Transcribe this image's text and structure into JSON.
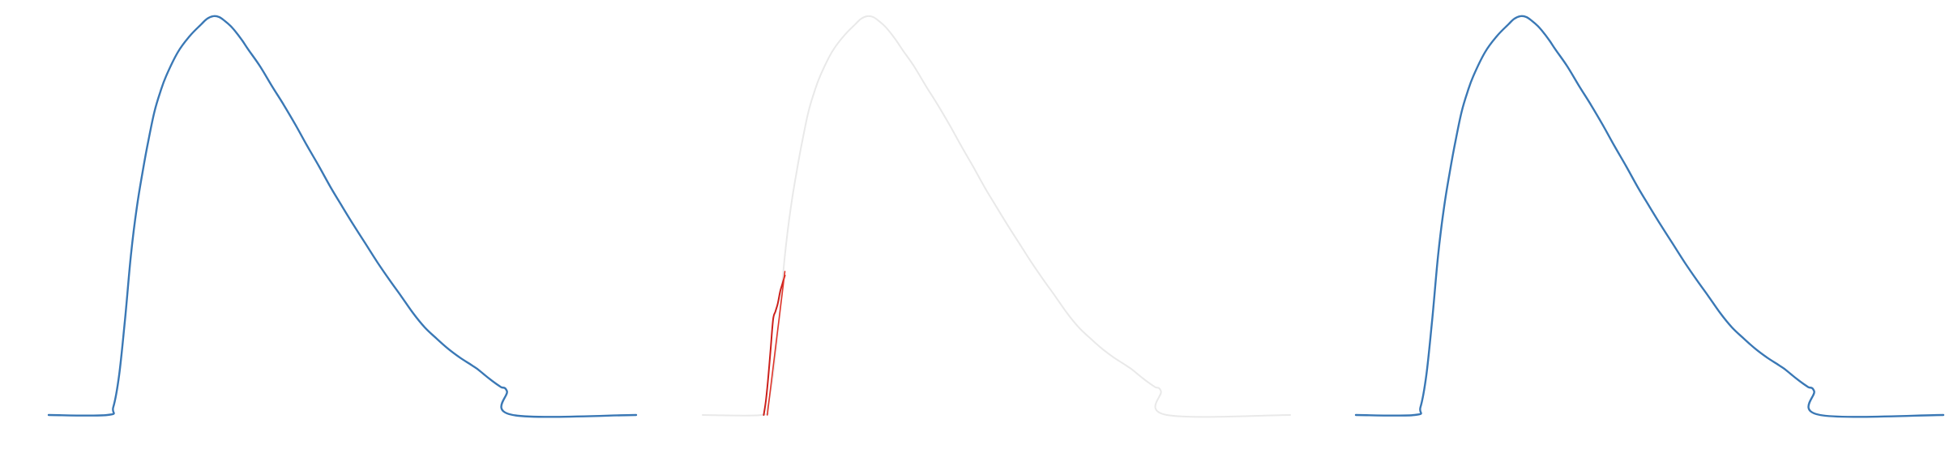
{
  "chart_data": [
    {
      "type": "line",
      "title": "",
      "xlabel": "",
      "ylabel": "",
      "axes_visible": false,
      "grid": false,
      "legend": "none",
      "xlim": [
        0,
        100
      ],
      "ylim": [
        0,
        100
      ],
      "series": [
        {
          "color": "#3a78b5",
          "x": [
            0,
            10,
            11,
            12,
            13,
            14,
            15,
            16,
            17,
            18,
            19,
            20,
            22,
            24,
            26,
            27,
            28,
            29,
            30,
            31,
            32,
            33,
            34,
            36,
            38,
            40,
            42,
            44,
            46,
            48,
            50,
            52,
            54,
            56,
            58,
            60,
            62,
            64,
            66,
            68,
            70,
            72,
            73,
            74,
            75,
            76,
            77,
            78,
            79,
            100
          ],
          "y": [
            0,
            0,
            2,
            10,
            24,
            40,
            52,
            61,
            69,
            76,
            81,
            85,
            91,
            95,
            98,
            99.4,
            100,
            99.8,
            98.8,
            97.5,
            95.8,
            93.8,
            91.6,
            87.4,
            82.5,
            77.8,
            72.8,
            67.5,
            62.4,
            57.1,
            52.2,
            47.4,
            42.8,
            38.2,
            33.9,
            29.8,
            25.6,
            22,
            19.2,
            16.6,
            14.4,
            12.5,
            11.5,
            10.3,
            9.1,
            8,
            7,
            6,
            0,
            0
          ]
        }
      ]
    },
    {
      "type": "line",
      "title": "",
      "xlabel": "",
      "ylabel": "",
      "axes_visible": false,
      "grid": false,
      "legend": "none",
      "xlim": [
        0,
        100
      ],
      "ylim": [
        0,
        100
      ],
      "series": [
        {
          "color": "#e9e9e9",
          "x": [
            0,
            10,
            11,
            12,
            13,
            14,
            15,
            16,
            17,
            18,
            19,
            20,
            22,
            24,
            26,
            27,
            28,
            29,
            30,
            31,
            32,
            33,
            34,
            36,
            38,
            40,
            42,
            44,
            46,
            48,
            50,
            52,
            54,
            56,
            58,
            60,
            62,
            64,
            66,
            68,
            70,
            72,
            73,
            74,
            75,
            76,
            77,
            78,
            79,
            100
          ],
          "y": [
            0,
            0,
            2,
            10,
            24,
            40,
            52,
            61,
            69,
            76,
            81,
            85,
            91,
            95,
            98,
            99.4,
            100,
            99.8,
            98.8,
            97.5,
            95.8,
            93.8,
            91.6,
            87.4,
            82.5,
            77.8,
            72.8,
            67.5,
            62.4,
            57.1,
            52.2,
            47.4,
            42.8,
            38.2,
            33.9,
            29.8,
            25.6,
            22,
            19.2,
            16.6,
            14.4,
            12.5,
            11.5,
            10.3,
            9.1,
            8,
            7,
            6,
            0,
            0
          ]
        },
        {
          "color": "#cc1f1a",
          "x": [
            10.4,
            10.8,
            11.2,
            11.6,
            12,
            12.4,
            12.8,
            13.2,
            13.6,
            14
          ],
          "y": [
            0,
            4,
            10,
            17,
            24,
            26,
            28,
            31,
            33,
            35
          ]
        },
        {
          "color": "#e0352b",
          "x": [
            11,
            11.5,
            12,
            12.5,
            13,
            13.5,
            14
          ],
          "y": [
            0,
            6,
            12,
            18,
            24,
            30,
            36
          ]
        }
      ]
    },
    {
      "type": "line",
      "title": "",
      "xlabel": "",
      "ylabel": "",
      "axes_visible": false,
      "grid": false,
      "legend": "none",
      "xlim": [
        0,
        100
      ],
      "ylim": [
        0,
        100
      ],
      "series": [
        {
          "color": "#3a78b5",
          "x": [
            0,
            10,
            11,
            12,
            13,
            14,
            15,
            16,
            17,
            18,
            19,
            20,
            22,
            24,
            26,
            27,
            28,
            29,
            30,
            31,
            32,
            33,
            34,
            36,
            38,
            40,
            42,
            44,
            46,
            48,
            50,
            52,
            54,
            56,
            58,
            60,
            62,
            64,
            66,
            68,
            70,
            72,
            73,
            74,
            75,
            76,
            77,
            78,
            79,
            100
          ],
          "y": [
            0,
            0,
            2,
            10,
            24,
            40,
            52,
            61,
            69,
            76,
            81,
            85,
            91,
            95,
            98,
            99.4,
            100,
            99.8,
            98.8,
            97.5,
            95.8,
            93.8,
            91.6,
            87.4,
            82.5,
            77.8,
            72.8,
            67.5,
            62.4,
            57.1,
            52.2,
            47.4,
            42.8,
            38.2,
            33.9,
            29.8,
            25.6,
            22,
            19.2,
            16.6,
            14.4,
            12.5,
            11.5,
            10.3,
            9.1,
            8,
            7,
            6,
            0,
            0
          ]
        }
      ]
    }
  ]
}
